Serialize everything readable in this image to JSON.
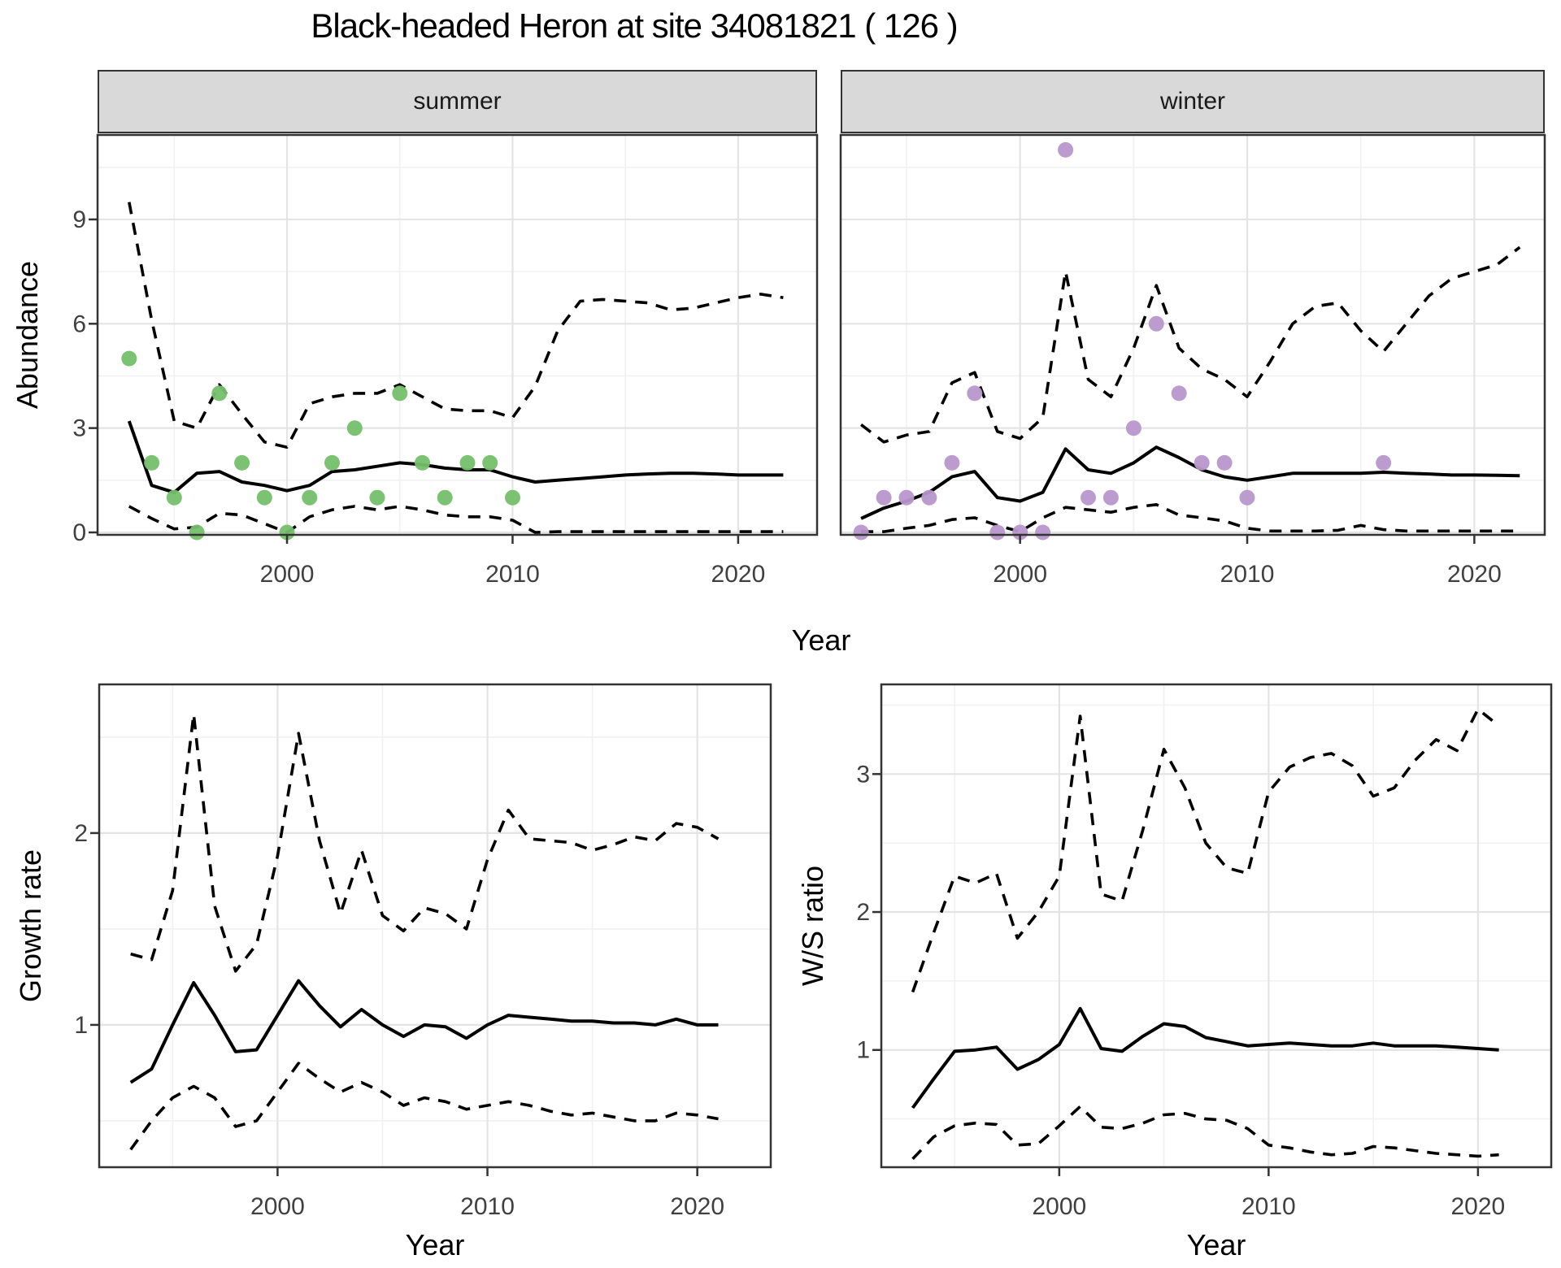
{
  "title": "Black-headed Heron at site 34081821 ( 126 )",
  "facets": [
    {
      "label": "summer"
    },
    {
      "label": "winter"
    }
  ],
  "axis_titles": {
    "abundance": "Abundance",
    "growth_rate": "Growth rate",
    "ws_ratio": "W/S ratio",
    "year_top": "Year",
    "year_bottom_left": "Year",
    "year_bottom_right": "Year"
  },
  "colors": {
    "summer_points": "#74C06A",
    "winter_points": "#B897CB",
    "fit_line": "#000000",
    "ci_line": "#000000",
    "strip_bg": "#D9D9D9",
    "grid_major": "#E4E4E4",
    "grid_minor": "#F1F1F1",
    "panel_border": "#333333",
    "tick_text": "#404040"
  },
  "chart_data": [
    {
      "id": "abundance-summer",
      "type": "scatter",
      "facet_label": "summer",
      "xlabel": "Year",
      "ylabel": "Abundance",
      "xlim": [
        1991.6,
        2023.5
      ],
      "ylim": [
        -0.07,
        11.43
      ],
      "x_major_ticks": [
        2000,
        2010,
        2020
      ],
      "x_minor_ticks": [
        1995,
        2005,
        2015
      ],
      "y_major_ticks": [
        0,
        3,
        6,
        9
      ],
      "y_minor_ticks": [
        1.5,
        4.5,
        7.5,
        10.5
      ],
      "show_y_tick_labels": true,
      "point_color": "#74C06A",
      "points": {
        "x": [
          1993,
          1994,
          1995,
          1996,
          1997,
          1998,
          1999,
          2000,
          2001,
          2002,
          2003,
          2004,
          2005,
          2006,
          2007,
          2008,
          2009,
          2010
        ],
        "y": [
          5,
          2,
          1,
          0,
          4,
          2,
          1,
          0,
          1,
          2,
          3,
          1,
          4,
          2,
          1,
          2,
          2,
          1
        ]
      },
      "series": [
        {
          "name": "fit",
          "style": "solid",
          "x": [
            1993,
            1994,
            1995,
            1996,
            1997,
            1998,
            1999,
            2000,
            2001,
            2002,
            2003,
            2004,
            2005,
            2006,
            2007,
            2008,
            2009,
            2010,
            2011,
            2012,
            2013,
            2014,
            2015,
            2016,
            2017,
            2018,
            2019,
            2020,
            2021,
            2022
          ],
          "y": [
            3.2,
            1.35,
            1.15,
            1.7,
            1.75,
            1.45,
            1.35,
            1.2,
            1.35,
            1.75,
            1.8,
            1.9,
            2.0,
            1.95,
            1.85,
            1.8,
            1.8,
            1.6,
            1.45,
            1.5,
            1.55,
            1.6,
            1.65,
            1.68,
            1.7,
            1.7,
            1.68,
            1.65,
            1.65,
            1.65
          ]
        },
        {
          "name": "upper_ci",
          "style": "dashed",
          "x": [
            1993,
            1994,
            1995,
            1996,
            1997,
            1998,
            1999,
            2000,
            2001,
            2002,
            2003,
            2004,
            2005,
            2006,
            2007,
            2008,
            2009,
            2010,
            2011,
            2012,
            2013,
            2014,
            2015,
            2016,
            2017,
            2018,
            2019,
            2020,
            2021,
            2022
          ],
          "y": [
            9.5,
            6.1,
            3.2,
            3.0,
            4.25,
            3.4,
            2.6,
            2.45,
            3.7,
            3.9,
            4.0,
            4.0,
            4.25,
            3.9,
            3.55,
            3.5,
            3.5,
            3.3,
            4.2,
            5.8,
            6.65,
            6.7,
            6.65,
            6.6,
            6.4,
            6.45,
            6.6,
            6.75,
            6.85,
            6.75
          ]
        },
        {
          "name": "lower_ci",
          "style": "dashed",
          "x": [
            1993,
            1994,
            1995,
            1996,
            1997,
            1998,
            1999,
            2000,
            2001,
            2002,
            2003,
            2004,
            2005,
            2006,
            2007,
            2008,
            2009,
            2010,
            2011,
            2012,
            2013,
            2014,
            2015,
            2016,
            2017,
            2018,
            2019,
            2020,
            2021,
            2022
          ],
          "y": [
            0.75,
            0.4,
            0.1,
            0.15,
            0.55,
            0.5,
            0.25,
            0.0,
            0.45,
            0.65,
            0.75,
            0.65,
            0.75,
            0.65,
            0.5,
            0.45,
            0.45,
            0.35,
            0.0,
            0.02,
            0.02,
            0.02,
            0.02,
            0.02,
            0.02,
            0.02,
            0.02,
            0.02,
            0.02,
            0.02
          ]
        }
      ]
    },
    {
      "id": "abundance-winter",
      "type": "scatter",
      "facet_label": "winter",
      "xlabel": "Year",
      "ylabel": "Abundance",
      "xlim": [
        1992.1,
        2023.1
      ],
      "ylim": [
        -0.07,
        11.43
      ],
      "x_major_ticks": [
        2000,
        2010,
        2020
      ],
      "x_minor_ticks": [
        1995,
        2005,
        2015
      ],
      "y_major_ticks": [
        0,
        3,
        6,
        9
      ],
      "y_minor_ticks": [
        1.5,
        4.5,
        7.5,
        10.5
      ],
      "show_y_tick_labels": false,
      "point_color": "#B897CB",
      "points": {
        "x": [
          1993,
          1994,
          1995,
          1996,
          1997,
          1998,
          1999,
          2000,
          2001,
          2002,
          2003,
          2004,
          2005,
          2006,
          2007,
          2008,
          2009,
          2010,
          2016
        ],
        "y": [
          0,
          1,
          1,
          1,
          2,
          4,
          0,
          0,
          0,
          11,
          1,
          1,
          3,
          6,
          4,
          2,
          2,
          1,
          2
        ]
      },
      "series": [
        {
          "name": "fit",
          "style": "solid",
          "x": [
            1993,
            1994,
            1995,
            1996,
            1997,
            1998,
            1999,
            2000,
            2001,
            2002,
            2003,
            2004,
            2005,
            2006,
            2007,
            2008,
            2009,
            2010,
            2011,
            2012,
            2013,
            2014,
            2015,
            2016,
            2017,
            2018,
            2019,
            2020,
            2021,
            2022
          ],
          "y": [
            0.4,
            0.7,
            0.9,
            1.15,
            1.6,
            1.75,
            1.0,
            0.9,
            1.15,
            2.4,
            1.8,
            1.7,
            2.0,
            2.45,
            2.15,
            1.8,
            1.6,
            1.5,
            1.6,
            1.7,
            1.7,
            1.7,
            1.7,
            1.73,
            1.7,
            1.68,
            1.65,
            1.65,
            1.64,
            1.63
          ]
        },
        {
          "name": "upper_ci",
          "style": "dashed",
          "x": [
            1993,
            1994,
            1995,
            1996,
            1997,
            1998,
            1999,
            2000,
            2001,
            2002,
            2003,
            2004,
            2005,
            2006,
            2007,
            2008,
            2009,
            2010,
            2011,
            2012,
            2013,
            2014,
            2015,
            2016,
            2017,
            2018,
            2019,
            2020,
            2021,
            2022
          ],
          "y": [
            3.1,
            2.6,
            2.8,
            2.9,
            4.3,
            4.6,
            2.9,
            2.7,
            3.3,
            7.5,
            4.4,
            3.9,
            5.3,
            7.1,
            5.3,
            4.7,
            4.4,
            3.9,
            4.9,
            6.0,
            6.5,
            6.6,
            5.8,
            5.2,
            6.0,
            6.8,
            7.3,
            7.5,
            7.7,
            8.2
          ]
        },
        {
          "name": "lower_ci",
          "style": "dashed",
          "x": [
            1993,
            1994,
            1995,
            1996,
            1997,
            1998,
            1999,
            2000,
            2001,
            2002,
            2003,
            2004,
            2005,
            2006,
            2007,
            2008,
            2009,
            2010,
            2011,
            2012,
            2013,
            2014,
            2015,
            2016,
            2017,
            2018,
            2019,
            2020,
            2021,
            2022
          ],
          "y": [
            0.02,
            0.02,
            0.12,
            0.2,
            0.37,
            0.42,
            0.2,
            0.02,
            0.42,
            0.72,
            0.65,
            0.58,
            0.72,
            0.8,
            0.5,
            0.42,
            0.33,
            0.12,
            0.04,
            0.04,
            0.04,
            0.06,
            0.2,
            0.08,
            0.04,
            0.04,
            0.04,
            0.04,
            0.04,
            0.04
          ]
        }
      ]
    },
    {
      "id": "growth-rate",
      "type": "line",
      "xlabel": "Year",
      "ylabel": "Growth rate",
      "xlim": [
        1991.5,
        2023.5
      ],
      "ylim": [
        0.258,
        2.775
      ],
      "x_major_ticks": [
        2000,
        2010,
        2020
      ],
      "x_minor_ticks": [
        1995,
        2005,
        2015
      ],
      "y_major_ticks": [
        1,
        2
      ],
      "y_minor_ticks": [
        0.5,
        1.5,
        2.5
      ],
      "show_y_tick_labels": true,
      "series": [
        {
          "name": "fit",
          "style": "solid",
          "x": [
            1993,
            1994,
            1995,
            1996,
            1997,
            1998,
            1999,
            2000,
            2001,
            2002,
            2003,
            2004,
            2005,
            2006,
            2007,
            2008,
            2009,
            2010,
            2011,
            2012,
            2013,
            2014,
            2015,
            2016,
            2017,
            2018,
            2019,
            2020,
            2021
          ],
          "y": [
            0.7,
            0.77,
            1.0,
            1.22,
            1.05,
            0.86,
            0.87,
            1.05,
            1.23,
            1.1,
            0.99,
            1.08,
            1.0,
            0.94,
            1.0,
            0.99,
            0.93,
            1.0,
            1.05,
            1.04,
            1.03,
            1.02,
            1.02,
            1.01,
            1.01,
            1.0,
            1.03,
            1.0,
            1.0
          ]
        },
        {
          "name": "upper_ci",
          "style": "dashed",
          "x": [
            1993,
            1994,
            1995,
            1996,
            1997,
            1998,
            1999,
            2000,
            2001,
            2002,
            2003,
            2004,
            2005,
            2006,
            2007,
            2008,
            2009,
            2010,
            2011,
            2012,
            2013,
            2014,
            2015,
            2016,
            2017,
            2018,
            2019,
            2020,
            2021
          ],
          "y": [
            1.37,
            1.34,
            1.7,
            2.62,
            1.62,
            1.28,
            1.42,
            1.88,
            2.52,
            1.96,
            1.58,
            1.91,
            1.57,
            1.49,
            1.61,
            1.58,
            1.5,
            1.86,
            2.12,
            1.97,
            1.96,
            1.95,
            1.91,
            1.94,
            1.98,
            1.96,
            2.05,
            2.03,
            1.97
          ]
        },
        {
          "name": "lower_ci",
          "style": "dashed",
          "x": [
            1993,
            1994,
            1995,
            1996,
            1997,
            1998,
            1999,
            2000,
            2001,
            2002,
            2003,
            2004,
            2005,
            2006,
            2007,
            2008,
            2009,
            2010,
            2011,
            2012,
            2013,
            2014,
            2015,
            2016,
            2017,
            2018,
            2019,
            2020,
            2021
          ],
          "y": [
            0.35,
            0.5,
            0.62,
            0.68,
            0.62,
            0.47,
            0.5,
            0.65,
            0.8,
            0.72,
            0.65,
            0.7,
            0.65,
            0.58,
            0.62,
            0.6,
            0.56,
            0.58,
            0.6,
            0.58,
            0.55,
            0.53,
            0.54,
            0.52,
            0.5,
            0.5,
            0.54,
            0.53,
            0.51
          ]
        }
      ]
    },
    {
      "id": "ws-ratio",
      "type": "line",
      "xlabel": "Year",
      "ylabel": "W/S ratio",
      "xlim": [
        1991.5,
        2023.5
      ],
      "ylim": [
        0.15,
        3.65
      ],
      "x_major_ticks": [
        2000,
        2010,
        2020
      ],
      "x_minor_ticks": [
        1995,
        2005,
        2015
      ],
      "y_major_ticks": [
        1,
        2,
        3
      ],
      "y_minor_ticks": [
        0.5,
        1.5,
        2.5,
        3.5
      ],
      "show_y_tick_labels": true,
      "series": [
        {
          "name": "fit",
          "style": "solid",
          "x": [
            1993,
            1994,
            1995,
            1996,
            1997,
            1998,
            1999,
            2000,
            2001,
            2002,
            2003,
            2004,
            2005,
            2006,
            2007,
            2008,
            2009,
            2010,
            2011,
            2012,
            2013,
            2014,
            2015,
            2016,
            2017,
            2018,
            2019,
            2020,
            2021
          ],
          "y": [
            0.58,
            0.79,
            0.99,
            1.0,
            1.02,
            0.86,
            0.93,
            1.04,
            1.3,
            1.01,
            0.99,
            1.1,
            1.19,
            1.17,
            1.09,
            1.06,
            1.03,
            1.04,
            1.05,
            1.04,
            1.03,
            1.03,
            1.05,
            1.03,
            1.03,
            1.03,
            1.02,
            1.01,
            1.0
          ]
        },
        {
          "name": "upper_ci",
          "style": "dashed",
          "x": [
            1993,
            1994,
            1995,
            1996,
            1997,
            1998,
            1999,
            2000,
            2001,
            2002,
            2003,
            2004,
            2005,
            2006,
            2007,
            2008,
            2009,
            2010,
            2011,
            2012,
            2013,
            2014,
            2015,
            2016,
            2017,
            2018,
            2019,
            2020,
            2021
          ],
          "y": [
            1.42,
            1.85,
            2.26,
            2.21,
            2.28,
            1.81,
            2.0,
            2.26,
            3.42,
            2.13,
            2.08,
            2.6,
            3.18,
            2.9,
            2.5,
            2.32,
            2.28,
            2.87,
            3.05,
            3.12,
            3.15,
            3.06,
            2.84,
            2.9,
            3.1,
            3.25,
            3.17,
            3.47,
            3.35
          ]
        },
        {
          "name": "lower_ci",
          "style": "dashed",
          "x": [
            1993,
            1994,
            1995,
            1996,
            1997,
            1998,
            1999,
            2000,
            2001,
            2002,
            2003,
            2004,
            2005,
            2006,
            2007,
            2008,
            2009,
            2010,
            2011,
            2012,
            2013,
            2014,
            2015,
            2016,
            2017,
            2018,
            2019,
            2020,
            2021
          ],
          "y": [
            0.21,
            0.37,
            0.45,
            0.47,
            0.46,
            0.31,
            0.32,
            0.45,
            0.59,
            0.44,
            0.43,
            0.47,
            0.53,
            0.54,
            0.5,
            0.49,
            0.43,
            0.31,
            0.29,
            0.26,
            0.24,
            0.25,
            0.3,
            0.29,
            0.27,
            0.25,
            0.24,
            0.23,
            0.24
          ]
        }
      ]
    }
  ]
}
